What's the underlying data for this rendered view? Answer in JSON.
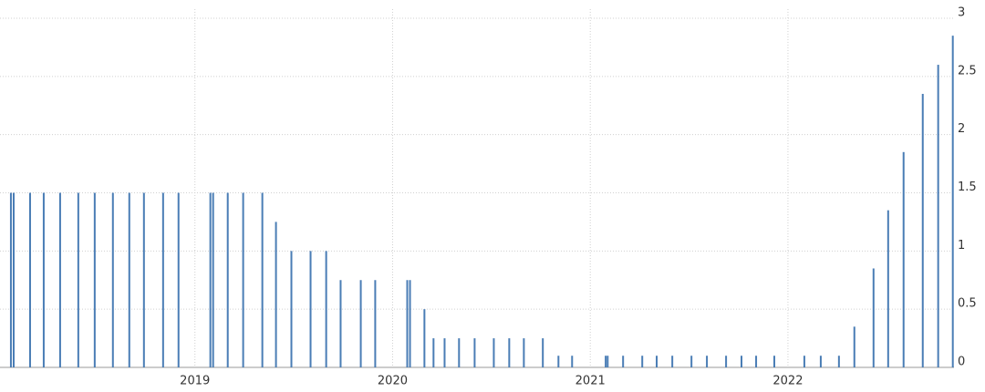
{
  "chart_data": {
    "type": "bar",
    "color": "#4a7db5",
    "grid": true,
    "x": [
      2018.069,
      2018.083,
      2018.166,
      2018.235,
      2018.318,
      2018.41,
      2018.493,
      2018.585,
      2018.668,
      2018.742,
      2018.839,
      2018.917,
      2019.078,
      2019.092,
      2019.166,
      2019.244,
      2019.341,
      2019.41,
      2019.488,
      2019.585,
      2019.664,
      2019.737,
      2019.839,
      2019.912,
      2020.074,
      2020.088,
      2020.161,
      2020.207,
      2020.263,
      2020.336,
      2020.415,
      2020.512,
      2020.59,
      2020.664,
      2020.76,
      2020.839,
      2020.908,
      2021.078,
      2021.088,
      2021.166,
      2021.263,
      2021.336,
      2021.415,
      2021.512,
      2021.59,
      2021.687,
      2021.765,
      2021.839,
      2021.931,
      2022.083,
      2022.166,
      2022.258,
      2022.336,
      2022.433,
      2022.507,
      2022.585,
      2022.682,
      2022.76,
      2022.834
    ],
    "values": [
      1.5,
      1.5,
      1.5,
      1.5,
      1.5,
      1.5,
      1.5,
      1.5,
      1.5,
      1.5,
      1.5,
      1.5,
      1.5,
      1.5,
      1.5,
      1.5,
      1.5,
      1.25,
      1,
      1,
      1,
      0.75,
      0.75,
      0.75,
      0.75,
      0.75,
      0.5,
      0.25,
      0.25,
      0.25,
      0.25,
      0.25,
      0.25,
      0.25,
      0.25,
      0.1,
      0.1,
      0.1,
      0.1,
      0.1,
      0.1,
      0.1,
      0.1,
      0.1,
      0.1,
      0.1,
      0.1,
      0.1,
      0.1,
      0.1,
      0.1,
      0.1,
      0.35,
      0.85,
      1.35,
      1.85,
      2.35,
      2.6,
      2.85
    ],
    "xlim": [
      2018.06,
      2022.84
    ],
    "xticks": [
      2019,
      2020,
      2021,
      2022
    ],
    "ylim": [
      0,
      3
    ],
    "yticks": [
      0,
      0.5,
      1,
      1.5,
      2,
      2.5,
      3
    ]
  }
}
